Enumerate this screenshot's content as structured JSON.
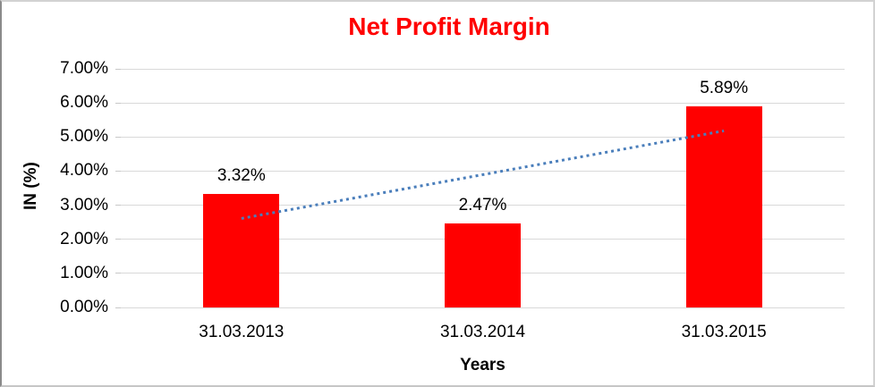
{
  "frame": {
    "background": "#FFFFFF",
    "border_color": "#D2D2D2"
  },
  "chart_data": {
    "type": "bar",
    "title": "Net Profit Margin",
    "title_color": "#FF0000",
    "categories": [
      "31.03.2013",
      "31.03.2014",
      "31.03.2015"
    ],
    "values": [
      3.32,
      2.47,
      5.89
    ],
    "data_labels": [
      "3.32%",
      "2.47%",
      "5.89%"
    ],
    "xlabel": "Years",
    "ylabel": "IN (%)",
    "ylim": [
      0,
      7
    ],
    "ytick_step": 1,
    "ytick_labels": [
      "0.00%",
      "1.00%",
      "2.00%",
      "3.00%",
      "4.00%",
      "5.00%",
      "6.00%",
      "7.00%"
    ],
    "bar_color": "#FF0000",
    "gridline_color": "#D9D9D9",
    "tick_color": "#C8C8C8",
    "label_color": "#000000",
    "legend": "none",
    "grid": "horizontal",
    "trendline": {
      "type": "linear",
      "style": "dotted",
      "color": "#4A7EBB",
      "start_value": 2.61,
      "end_value": 5.18
    }
  }
}
